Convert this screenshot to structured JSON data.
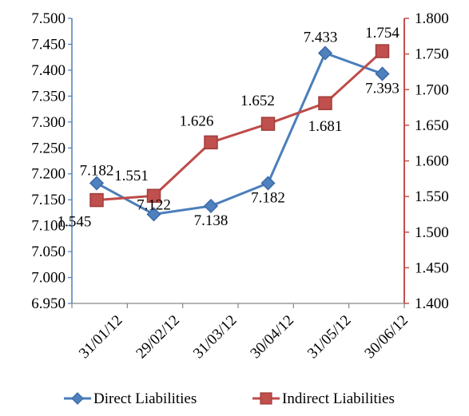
{
  "chart_data": {
    "type": "line",
    "categories": [
      "31/01/12",
      "29/02/12",
      "31/03/12",
      "30/04/12",
      "31/05/12",
      "30/06/12"
    ],
    "series": [
      {
        "name": "Direct Liabilities",
        "axis": "left",
        "values": [
          7.182,
          7.122,
          7.138,
          7.182,
          7.433,
          7.393
        ],
        "labels": [
          "7.182",
          "7.122",
          "7.138",
          "7.182",
          "7.433",
          "7.393"
        ],
        "color": "#4a7ebb",
        "marker": "diamond"
      },
      {
        "name": "Indirect Liabilities",
        "axis": "right",
        "values": [
          1.545,
          1.551,
          1.626,
          1.652,
          1.681,
          1.754
        ],
        "labels": [
          "1.545",
          "1.551",
          "1.626",
          "1.652",
          "1.681",
          "1.754"
        ],
        "color": "#be4b48",
        "marker": "square"
      }
    ],
    "y_left": {
      "min": 6.95,
      "max": 7.5,
      "ticks": [
        "7.500",
        "7.450",
        "7.400",
        "7.350",
        "7.300",
        "7.250",
        "7.200",
        "7.150",
        "7.100",
        "7.050",
        "7.000",
        "6.950"
      ],
      "tick_values": [
        7.5,
        7.45,
        7.4,
        7.35,
        7.3,
        7.25,
        7.2,
        7.15,
        7.1,
        7.05,
        7.0,
        6.95
      ],
      "color": "#4a7ebb"
    },
    "y_right": {
      "min": 1.4,
      "max": 1.8,
      "ticks": [
        "1.800",
        "1.750",
        "1.700",
        "1.650",
        "1.600",
        "1.550",
        "1.500",
        "1.450",
        "1.400"
      ],
      "tick_values": [
        1.8,
        1.75,
        1.7,
        1.65,
        1.6,
        1.55,
        1.5,
        1.45,
        1.4
      ],
      "color": "#c0504d"
    },
    "grid": false,
    "legend_position": "bottom",
    "title": ""
  }
}
